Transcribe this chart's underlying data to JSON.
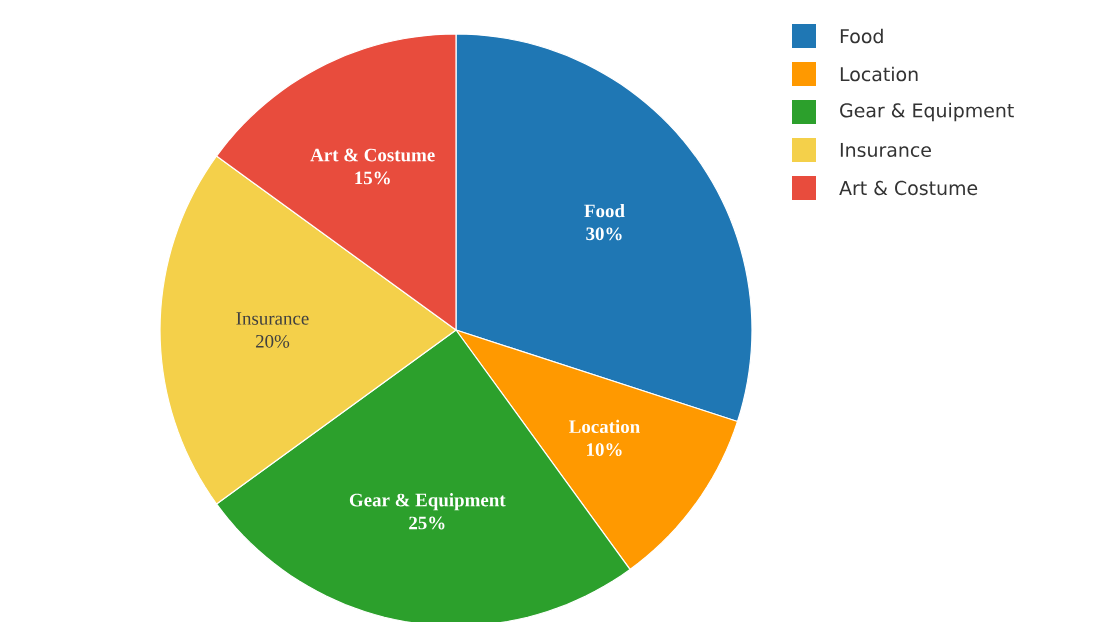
{
  "chart_data": {
    "type": "pie",
    "categories": [
      "Food",
      "Location",
      "Gear & Equipment",
      "Insurance",
      "Art & Costume"
    ],
    "values": [
      30,
      10,
      25,
      20,
      15
    ],
    "value_labels": [
      "30%",
      "10%",
      "25%",
      "20%",
      "15%"
    ],
    "colors": [
      "#1f77b4",
      "#ff9900",
      "#2ca02c",
      "#f4d04a",
      "#e84c3d"
    ],
    "legend": "top right"
  }
}
